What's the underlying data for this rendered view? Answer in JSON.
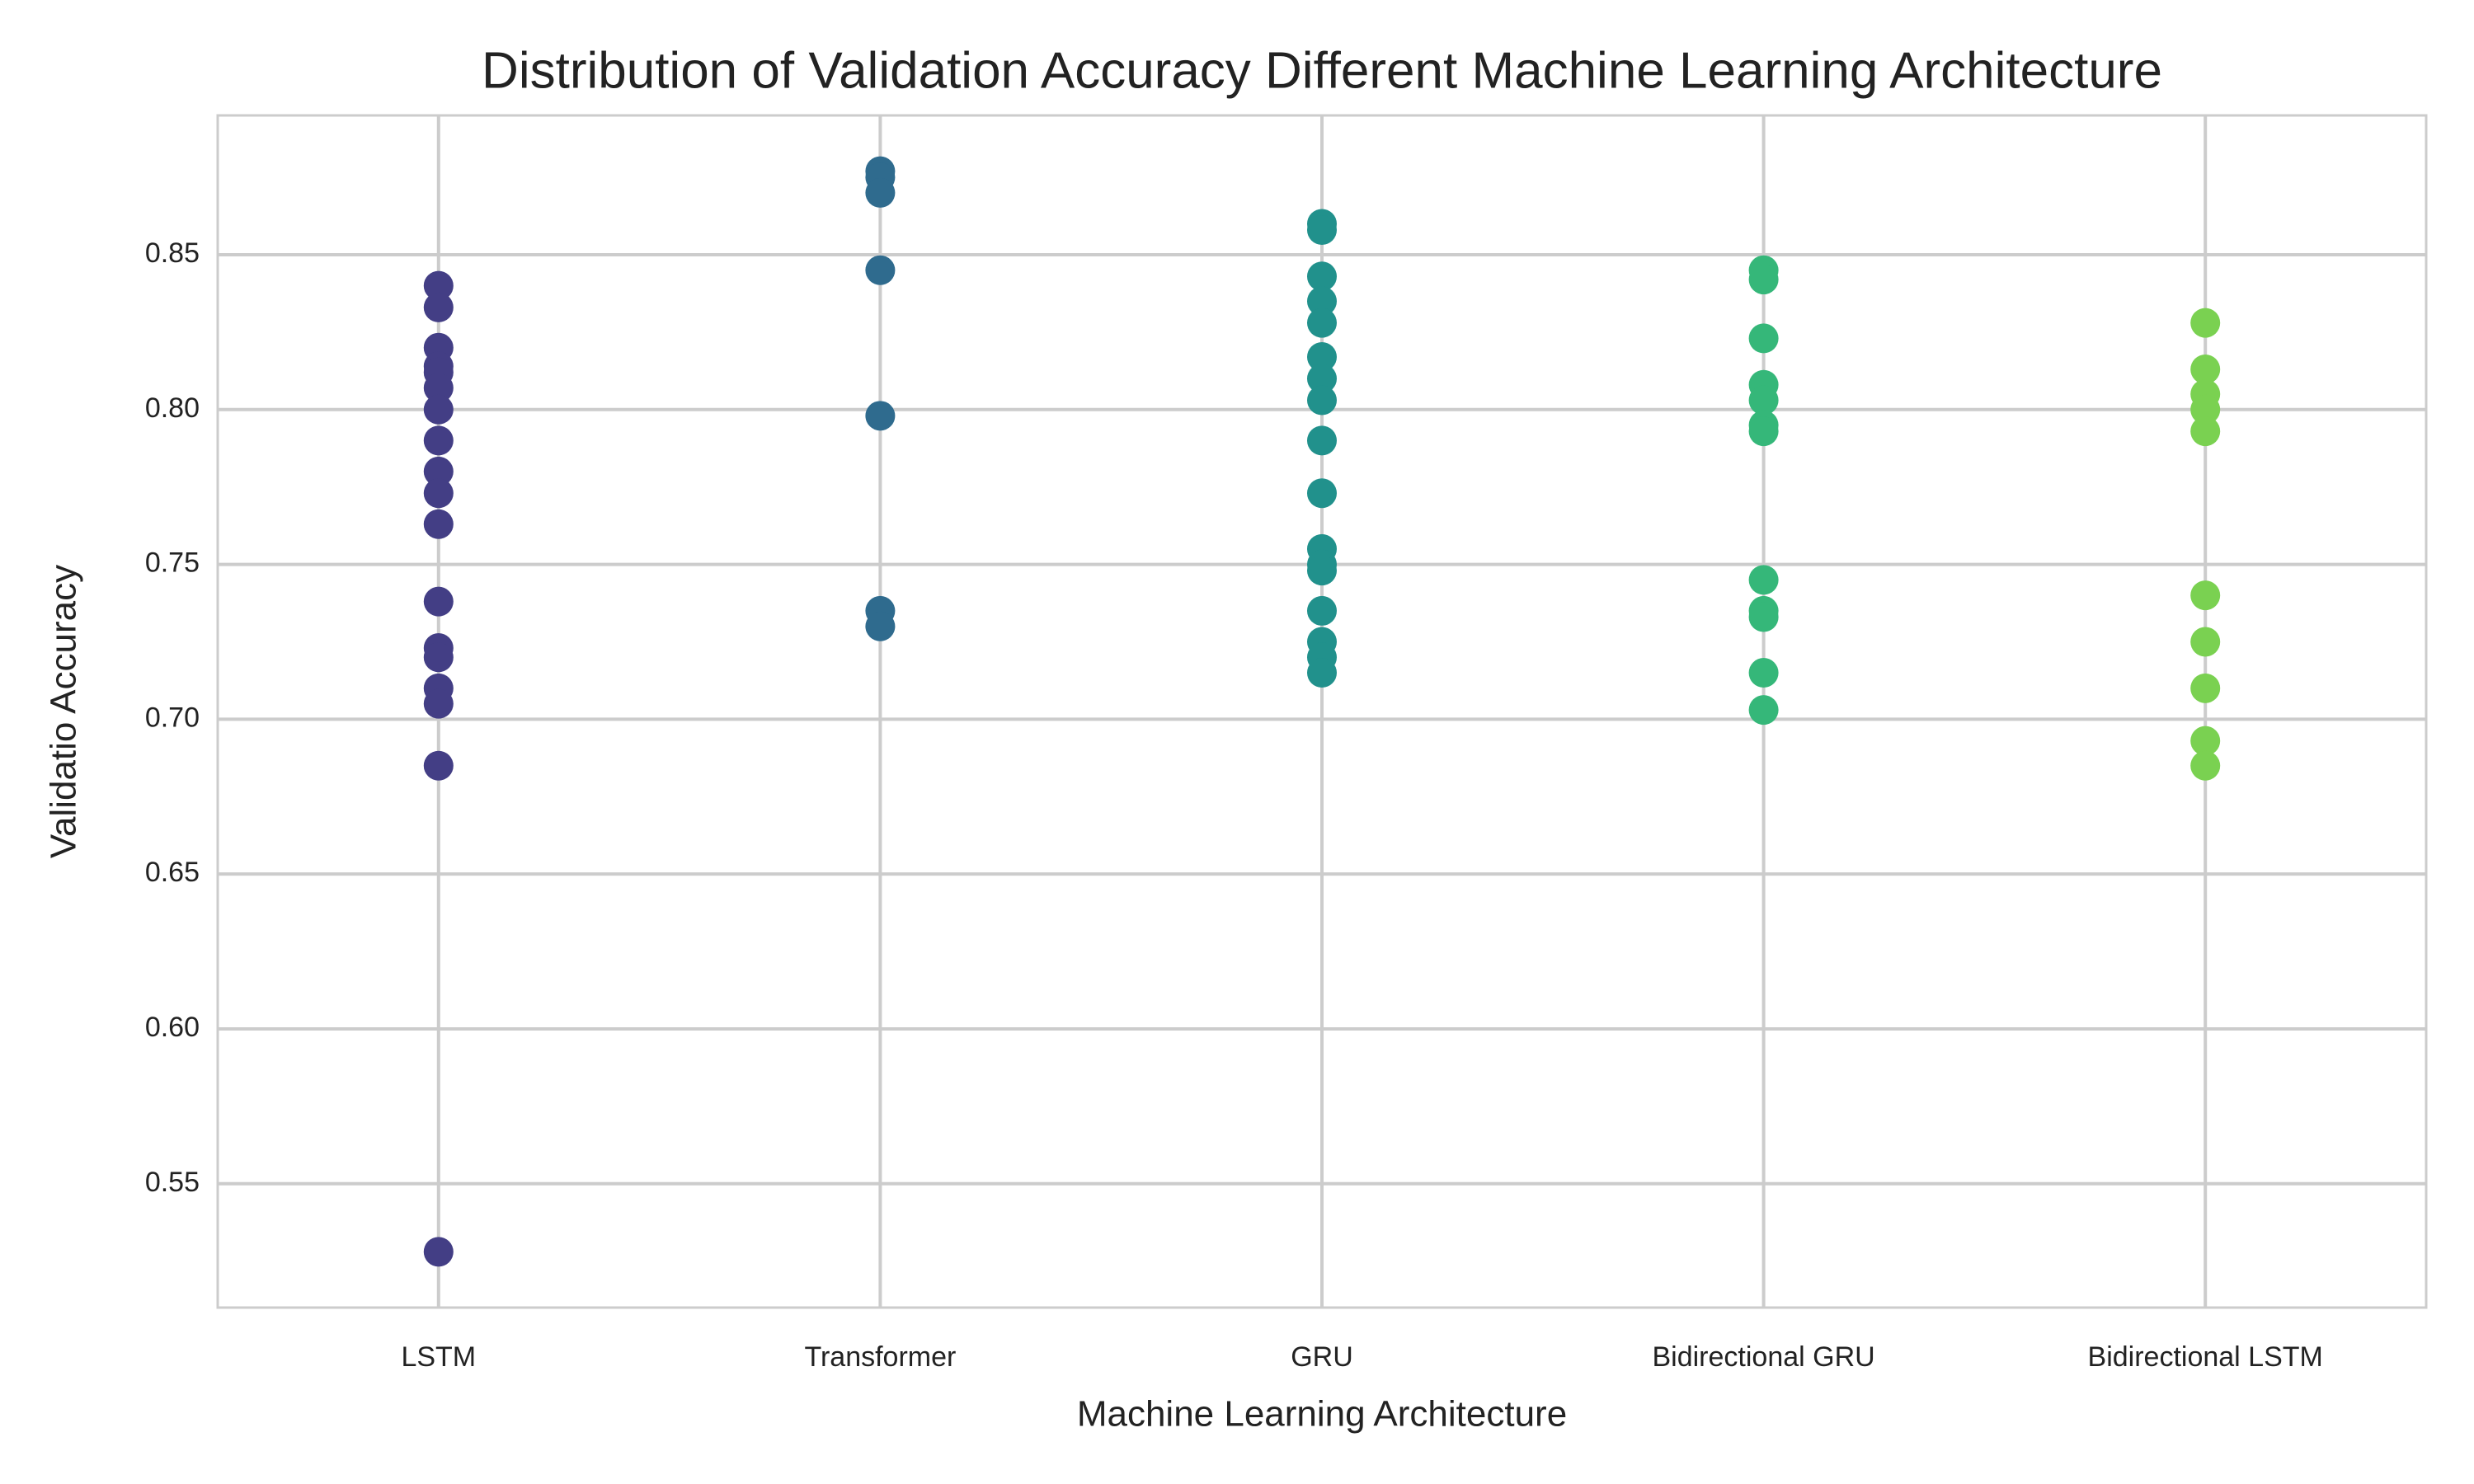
{
  "chart_data": {
    "type": "strip",
    "title": "Distribution of Validation Accuracy Different Machine Learning Architecture",
    "x_label": "Machine Learning Architecture",
    "y_label": "Validatio Accuracy",
    "categories": [
      "LSTM",
      "Transformer",
      "GRU",
      "Bidirectional GRU",
      "Bidirectional LSTM"
    ],
    "colors": [
      "#433e85",
      "#2f6b8e",
      "#21918c",
      "#35b779",
      "#7ad151"
    ],
    "values": [
      [
        0.84,
        0.833,
        0.82,
        0.814,
        0.812,
        0.807,
        0.8,
        0.79,
        0.78,
        0.773,
        0.763,
        0.738,
        0.723,
        0.72,
        0.71,
        0.705,
        0.685,
        0.528
      ],
      [
        0.877,
        0.875,
        0.87,
        0.845,
        0.798,
        0.735,
        0.73
      ],
      [
        0.86,
        0.858,
        0.843,
        0.835,
        0.828,
        0.817,
        0.81,
        0.803,
        0.79,
        0.773,
        0.755,
        0.75,
        0.748,
        0.735,
        0.725,
        0.72,
        0.715
      ],
      [
        0.845,
        0.842,
        0.823,
        0.808,
        0.803,
        0.795,
        0.793,
        0.745,
        0.735,
        0.733,
        0.715,
        0.703
      ],
      [
        0.828,
        0.813,
        0.805,
        0.8,
        0.793,
        0.74,
        0.725,
        0.71,
        0.693,
        0.685
      ]
    ],
    "ylim": [
      0.51,
      0.895
    ],
    "yticks": [
      {
        "value": 0.55,
        "label": "0.55"
      },
      {
        "value": 0.6,
        "label": "0.60"
      },
      {
        "value": 0.65,
        "label": "0.65"
      },
      {
        "value": 0.7,
        "label": "0.70"
      },
      {
        "value": 0.75,
        "label": "0.75"
      },
      {
        "value": 0.8,
        "label": "0.80"
      },
      {
        "value": 0.85,
        "label": "0.85"
      }
    ],
    "grid": true
  }
}
